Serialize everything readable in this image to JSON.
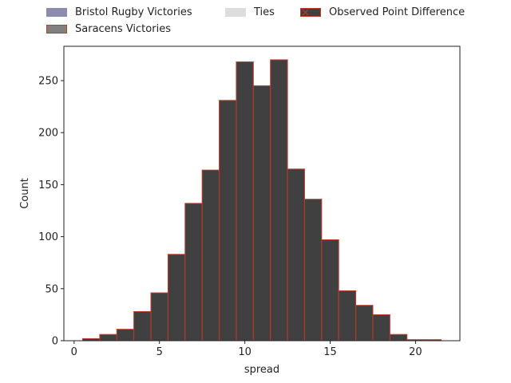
{
  "chart_data": {
    "type": "bar",
    "title": "",
    "xlabel": "spread",
    "ylabel": "Count",
    "xlim": [
      -0.6,
      22.6
    ],
    "ylim": [
      0,
      283
    ],
    "xticks": [
      0,
      5,
      10,
      15,
      20
    ],
    "yticks": [
      0,
      50,
      100,
      150,
      200,
      250
    ],
    "bin_edges": [
      0.5,
      1.5,
      2.5,
      3.5,
      4.5,
      5.5,
      6.5,
      7.5,
      8.5,
      9.5,
      10.5,
      11.5,
      12.5,
      13.5,
      14.5,
      15.5,
      16.5,
      17.5,
      18.5,
      19.5,
      20.5,
      21.5
    ],
    "series": [
      {
        "name": "Bristol Rugby Victories",
        "values": [],
        "color": "#8c8cae"
      },
      {
        "name": "Saracens Victories",
        "values": [],
        "color": "#808080"
      },
      {
        "name": "Ties",
        "values": [],
        "color": "#dddddd"
      },
      {
        "name": "Observed Point Difference",
        "values": [
          2,
          6,
          11,
          28,
          46,
          83,
          132,
          164,
          231,
          268,
          245,
          270,
          165,
          136,
          97,
          48,
          34,
          25,
          6,
          1,
          1
        ],
        "color": "#404040",
        "edgecolor": "#c0392b"
      }
    ],
    "legend": {
      "placement": "top",
      "entries": [
        {
          "label": "Bristol Rugby Victories",
          "fill": "#8c8cae",
          "edge": "#8c8cae",
          "hatch": false
        },
        {
          "label": "Saracens Victories",
          "fill": "#808080",
          "edge": "#c0392b",
          "hatch": false
        },
        {
          "label": "Ties",
          "fill": "#dddddd",
          "edge": "#dddddd",
          "hatch": false
        },
        {
          "label": "Observed Point Difference",
          "fill": "#404040",
          "edge": "#c0392b",
          "hatch": true
        }
      ]
    },
    "grid": false
  }
}
